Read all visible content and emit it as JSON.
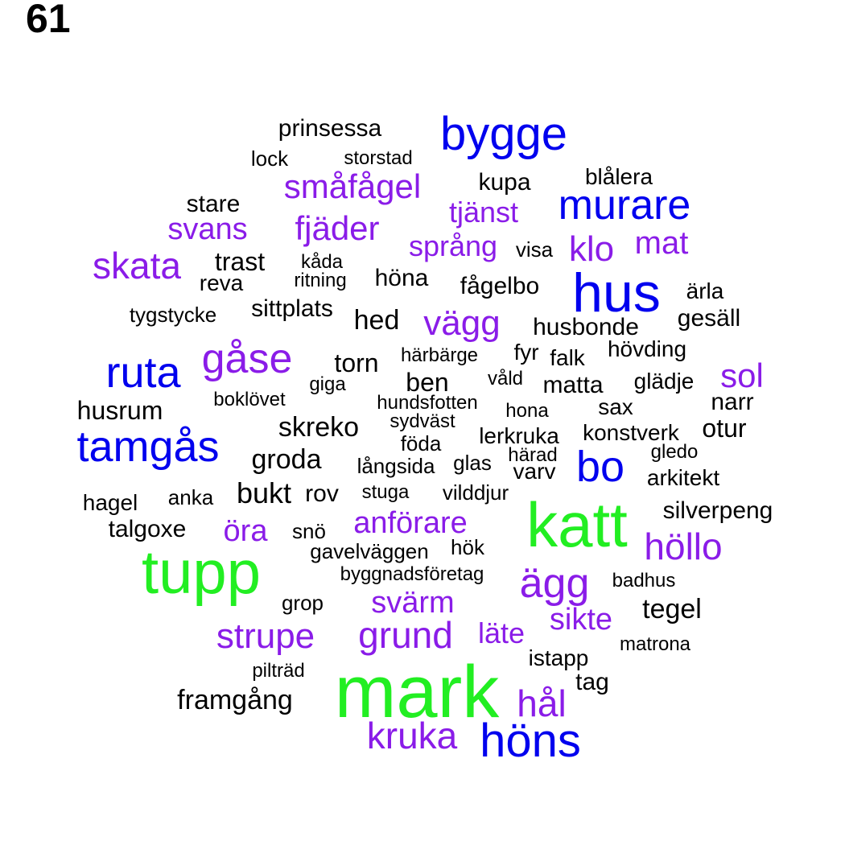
{
  "panel_number": "61",
  "palette": {
    "green": "#22ee22",
    "blue": "#0000ee",
    "purple": "#8a1ce8",
    "black": "#000000"
  },
  "words": [
    {
      "text": "mark",
      "color": "green"
    },
    {
      "text": "tupp",
      "color": "green"
    },
    {
      "text": "katt",
      "color": "green"
    },
    {
      "text": "hus",
      "color": "blue"
    },
    {
      "text": "höns",
      "color": "blue"
    },
    {
      "text": "bygge",
      "color": "blue"
    },
    {
      "text": "murare",
      "color": "blue"
    },
    {
      "text": "tamgås",
      "color": "blue"
    },
    {
      "text": "ruta",
      "color": "blue"
    },
    {
      "text": "bo",
      "color": "blue"
    },
    {
      "text": "ägg",
      "color": "purple"
    },
    {
      "text": "grund",
      "color": "purple"
    },
    {
      "text": "kruka",
      "color": "purple"
    },
    {
      "text": "hål",
      "color": "purple"
    },
    {
      "text": "strupe",
      "color": "purple"
    },
    {
      "text": "höllo",
      "color": "purple"
    },
    {
      "text": "gåse",
      "color": "purple"
    },
    {
      "text": "skata",
      "color": "purple"
    },
    {
      "text": "småfågel",
      "color": "purple"
    },
    {
      "text": "fjäder",
      "color": "purple"
    },
    {
      "text": "vägg",
      "color": "purple"
    },
    {
      "text": "klo",
      "color": "purple"
    },
    {
      "text": "sol",
      "color": "purple"
    },
    {
      "text": "svärm",
      "color": "purple"
    },
    {
      "text": "sikte",
      "color": "purple"
    },
    {
      "text": "öra",
      "color": "purple"
    },
    {
      "text": "anförare",
      "color": "purple"
    },
    {
      "text": "mat",
      "color": "purple"
    },
    {
      "text": "svans",
      "color": "purple"
    },
    {
      "text": "tjänst",
      "color": "purple"
    },
    {
      "text": "språng",
      "color": "purple"
    },
    {
      "text": "läte",
      "color": "purple"
    },
    {
      "text": "prinsessa",
      "color": "black"
    },
    {
      "text": "lock",
      "color": "black"
    },
    {
      "text": "storstad",
      "color": "black"
    },
    {
      "text": "kupa",
      "color": "black"
    },
    {
      "text": "blålera",
      "color": "black"
    },
    {
      "text": "stare",
      "color": "black"
    },
    {
      "text": "trast",
      "color": "black"
    },
    {
      "text": "kåda",
      "color": "black"
    },
    {
      "text": "reva",
      "color": "black"
    },
    {
      "text": "ritning",
      "color": "black"
    },
    {
      "text": "höna",
      "color": "black"
    },
    {
      "text": "visa",
      "color": "black"
    },
    {
      "text": "fågelbo",
      "color": "black"
    },
    {
      "text": "ärla",
      "color": "black"
    },
    {
      "text": "tygstycke",
      "color": "black"
    },
    {
      "text": "sittplats",
      "color": "black"
    },
    {
      "text": "hed",
      "color": "black"
    },
    {
      "text": "husbonde",
      "color": "black"
    },
    {
      "text": "gesäll",
      "color": "black"
    },
    {
      "text": "torn",
      "color": "black"
    },
    {
      "text": "härbärge",
      "color": "black"
    },
    {
      "text": "fyr",
      "color": "black"
    },
    {
      "text": "falk",
      "color": "black"
    },
    {
      "text": "hövding",
      "color": "black"
    },
    {
      "text": "ben",
      "color": "black"
    },
    {
      "text": "giga",
      "color": "black"
    },
    {
      "text": "våld",
      "color": "black"
    },
    {
      "text": "matta",
      "color": "black"
    },
    {
      "text": "glädje",
      "color": "black"
    },
    {
      "text": "boklövet",
      "color": "black"
    },
    {
      "text": "hundsfotten",
      "color": "black"
    },
    {
      "text": "hona",
      "color": "black"
    },
    {
      "text": "sax",
      "color": "black"
    },
    {
      "text": "narr",
      "color": "black"
    },
    {
      "text": "husrum",
      "color": "black"
    },
    {
      "text": "skreko",
      "color": "black"
    },
    {
      "text": "sydväst",
      "color": "black"
    },
    {
      "text": "lerkruka",
      "color": "black"
    },
    {
      "text": "konstverk",
      "color": "black"
    },
    {
      "text": "otur",
      "color": "black"
    },
    {
      "text": "föda",
      "color": "black"
    },
    {
      "text": "härad",
      "color": "black"
    },
    {
      "text": "gledo",
      "color": "black"
    },
    {
      "text": "groda",
      "color": "black"
    },
    {
      "text": "långsida",
      "color": "black"
    },
    {
      "text": "glas",
      "color": "black"
    },
    {
      "text": "varv",
      "color": "black"
    },
    {
      "text": "arkitekt",
      "color": "black"
    },
    {
      "text": "bukt",
      "color": "black"
    },
    {
      "text": "rov",
      "color": "black"
    },
    {
      "text": "stuga",
      "color": "black"
    },
    {
      "text": "vilddjur",
      "color": "black"
    },
    {
      "text": "anka",
      "color": "black"
    },
    {
      "text": "hagel",
      "color": "black"
    },
    {
      "text": "silverpeng",
      "color": "black"
    },
    {
      "text": "talgoxe",
      "color": "black"
    },
    {
      "text": "snö",
      "color": "black"
    },
    {
      "text": "gavelväggen",
      "color": "black"
    },
    {
      "text": "hök",
      "color": "black"
    },
    {
      "text": "byggnadsföretag",
      "color": "black"
    },
    {
      "text": "badhus",
      "color": "black"
    },
    {
      "text": "grop",
      "color": "black"
    },
    {
      "text": "tegel",
      "color": "black"
    },
    {
      "text": "matrona",
      "color": "black"
    },
    {
      "text": "istapp",
      "color": "black"
    },
    {
      "text": "pilträd",
      "color": "black"
    },
    {
      "text": "tag",
      "color": "black"
    },
    {
      "text": "framgång",
      "color": "black"
    }
  ]
}
